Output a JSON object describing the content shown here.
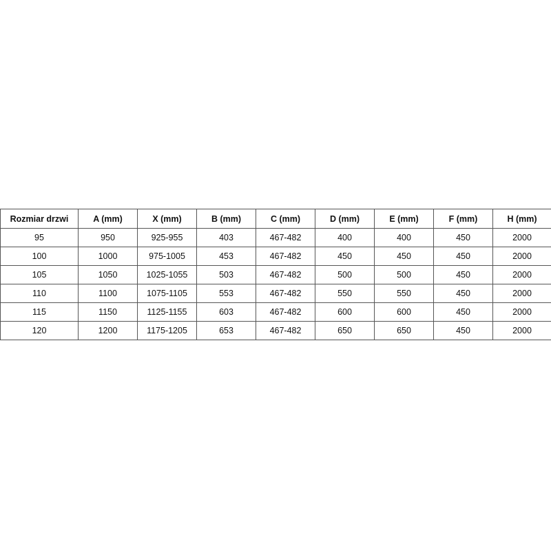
{
  "table": {
    "headers": [
      "Rozmiar drzwi",
      "A (mm)",
      "X (mm)",
      "B (mm)",
      "C (mm)",
      "D (mm)",
      "E (mm)",
      "F (mm)",
      "H (mm)"
    ],
    "rows": [
      [
        "95",
        "950",
        "925-955",
        "403",
        "467-482",
        "400",
        "400",
        "450",
        "2000"
      ],
      [
        "100",
        "1000",
        "975-1005",
        "453",
        "467-482",
        "450",
        "450",
        "450",
        "2000"
      ],
      [
        "105",
        "1050",
        "1025-1055",
        "503",
        "467-482",
        "500",
        "500",
        "450",
        "2000"
      ],
      [
        "110",
        "1100",
        "1075-1105",
        "553",
        "467-482",
        "550",
        "550",
        "450",
        "2000"
      ],
      [
        "115",
        "1150",
        "1125-1155",
        "603",
        "467-482",
        "600",
        "600",
        "450",
        "2000"
      ],
      [
        "120",
        "1200",
        "1175-1205",
        "653",
        "467-482",
        "650",
        "650",
        "450",
        "2000"
      ]
    ]
  }
}
